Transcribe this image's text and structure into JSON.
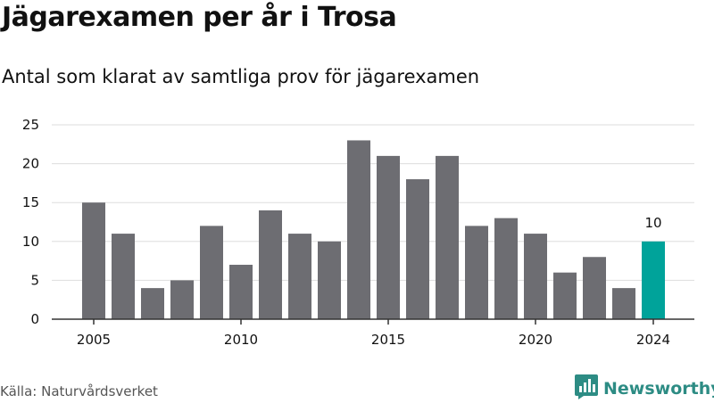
{
  "title": "Jägarexamen per år i Trosa",
  "subtitle": "Antal som klarat av samtliga prov för jägarexamen",
  "source": "Källa: Naturvårdsverket",
  "brand": {
    "name": "Newsworthy",
    "icon": "newsworthy-logo-icon"
  },
  "colors": {
    "bar": "#6d6d72",
    "highlight": "#00a39a",
    "grid": "#dddddd",
    "axis": "#333333",
    "brand": "#2d8c84"
  },
  "chart_data": {
    "type": "bar",
    "x": [
      2005,
      2006,
      2007,
      2008,
      2009,
      2010,
      2011,
      2012,
      2013,
      2014,
      2015,
      2016,
      2017,
      2018,
      2019,
      2020,
      2021,
      2022,
      2023,
      2024
    ],
    "values": [
      15,
      11,
      4,
      5,
      12,
      7,
      14,
      11,
      10,
      23,
      21,
      18,
      21,
      12,
      13,
      11,
      6,
      8,
      4,
      10
    ],
    "highlight_x": 2024,
    "data_labels": [
      {
        "x": 2024,
        "text": "10"
      }
    ],
    "xlabel": "",
    "ylabel": "",
    "ylim": [
      0,
      25
    ],
    "y_ticks": [
      0,
      5,
      10,
      15,
      20,
      25
    ],
    "x_ticks": [
      2005,
      2010,
      2015,
      2020,
      2024
    ],
    "grid": true,
    "legend": "none"
  }
}
